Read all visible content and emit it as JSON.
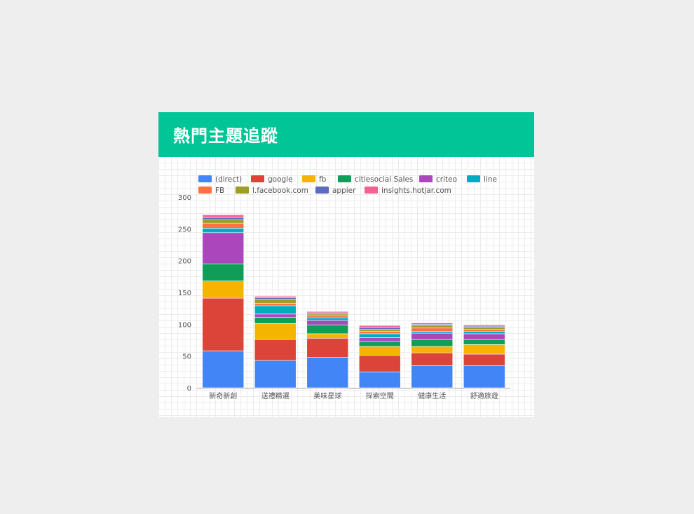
{
  "card": {
    "title": "熱門主題追蹤"
  },
  "chart_data": {
    "type": "bar",
    "stacked": true,
    "categories": [
      "新奇新創",
      "送禮精選",
      "美味星球",
      "探索空間",
      "健康生活",
      "舒適旅遊"
    ],
    "ylim": [
      0,
      300
    ],
    "yticks": [
      0,
      50,
      100,
      150,
      200,
      250,
      300
    ],
    "grid": true,
    "legend_position": "top",
    "series": [
      {
        "name": "(direct)",
        "color": "#4285f4",
        "values": [
          58,
          43,
          48,
          25,
          35,
          35
        ]
      },
      {
        "name": "google",
        "color": "#db4437",
        "values": [
          83,
          33,
          30,
          26,
          20,
          18
        ]
      },
      {
        "name": "fb",
        "color": "#f4b400",
        "values": [
          27,
          25,
          7,
          14,
          10,
          15
        ]
      },
      {
        "name": "citiesocial Sales",
        "color": "#0f9d58",
        "values": [
          27,
          10,
          14,
          8,
          11,
          8
        ]
      },
      {
        "name": "criteo",
        "color": "#ab47bc",
        "values": [
          49,
          5,
          7,
          6,
          10,
          9
        ]
      },
      {
        "name": "line",
        "color": "#00acc1",
        "values": [
          7,
          13,
          4,
          6,
          3,
          4
        ]
      },
      {
        "name": "FB",
        "color": "#ff7043",
        "values": [
          8,
          4,
          3,
          4,
          5,
          3
        ]
      },
      {
        "name": "l.facebook.com",
        "color": "#9e9d24",
        "values": [
          5,
          6,
          3,
          3,
          4,
          3
        ]
      },
      {
        "name": "appier",
        "color": "#5c6bc0",
        "values": [
          4,
          3,
          2,
          3,
          2,
          2
        ]
      },
      {
        "name": "insights.hotjar.com",
        "color": "#f06292",
        "values": [
          4,
          2,
          2,
          3,
          2,
          2
        ]
      }
    ]
  }
}
